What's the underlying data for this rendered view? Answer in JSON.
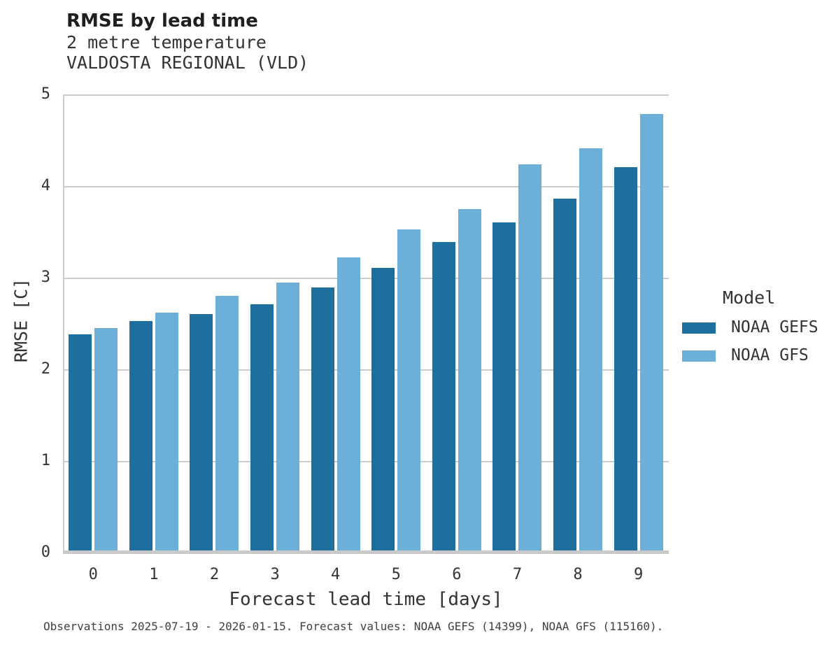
{
  "header": {
    "title": "RMSE by lead time",
    "subtitle_line1": "2 metre temperature",
    "subtitle_line2": "VALDOSTA REGIONAL (VLD)"
  },
  "legend": {
    "title": "Model",
    "entries": [
      {
        "label": "NOAA GEFS",
        "color": "#1f6f9e"
      },
      {
        "label": "NOAA GFS",
        "color": "#6cb0d8"
      }
    ]
  },
  "footer": {
    "caption": "Observations 2025-07-19 - 2026-01-15. Forecast values: NOAA GEFS (14399), NOAA GFS (115160)."
  },
  "colors": {
    "gefs_bar": "#1f6f9e",
    "gfs_bar": "#6cb0d8",
    "gridline": "#cccccc",
    "axis_line": "#c9c9c9",
    "background": "#ffffff"
  },
  "chart_data": {
    "type": "bar",
    "title": "RMSE by lead time",
    "subtitle": [
      "2 metre temperature",
      "VALDOSTA REGIONAL (VLD)"
    ],
    "xlabel": "Forecast lead time [days]",
    "ylabel": "RMSE [C]",
    "categories": [
      "0",
      "1",
      "2",
      "3",
      "4",
      "5",
      "6",
      "7",
      "8",
      "9"
    ],
    "series": [
      {
        "name": "NOAA GEFS",
        "color": "#1f6f9e",
        "values": [
          2.38,
          2.53,
          2.6,
          2.71,
          2.89,
          3.11,
          3.39,
          3.6,
          3.86,
          4.21
        ]
      },
      {
        "name": "NOAA GFS",
        "color": "#6cb0d8",
        "values": [
          2.45,
          2.62,
          2.8,
          2.95,
          3.22,
          3.53,
          3.75,
          4.24,
          4.41,
          4.79
        ]
      }
    ],
    "ylim": [
      0,
      5
    ],
    "yticks": [
      "0",
      "1",
      "2",
      "3",
      "4",
      "5"
    ],
    "grid": true,
    "legend_title": "Model",
    "legend_position": "right",
    "caption": "Observations 2025-07-19 - 2026-01-15. Forecast values: NOAA GEFS (14399), NOAA GFS (115160)."
  }
}
